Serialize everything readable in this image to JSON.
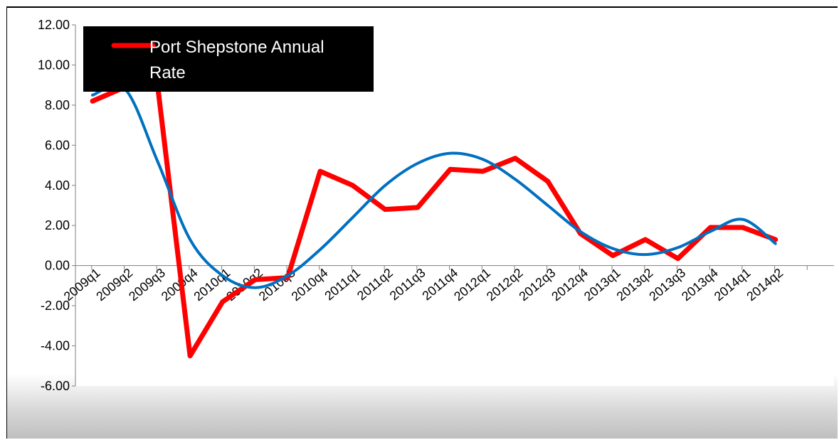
{
  "chart_data": {
    "type": "line",
    "title": "",
    "xlabel": "",
    "ylabel": "",
    "categories": [
      "2009q1",
      "2009q2",
      "2009q3",
      "2009q4",
      "2010q1",
      "2010q2",
      "2010q3",
      "2010q4",
      "2011q1",
      "2011q2",
      "2011q3",
      "2011q4",
      "2012q1",
      "2012q2",
      "2012q3",
      "2012q4",
      "2013q1",
      "2013q2",
      "2013q3",
      "2013q4",
      "2014q1",
      "2014q2"
    ],
    "ylim": [
      -6,
      12
    ],
    "yticks": [
      -6,
      -4,
      -2,
      0,
      2,
      4,
      6,
      8,
      10,
      12
    ],
    "ytick_labels": [
      "-6.00",
      "-4.00",
      "-2.00",
      "0.00",
      "2.00",
      "4.00",
      "6.00",
      "8.00",
      "10.00",
      "12.00"
    ],
    "grid": false,
    "legend": {
      "position": "top-left",
      "entries": [
        "Port Shepstone Annual Rate"
      ]
    },
    "series": [
      {
        "name": "Port Shepstone Annual Rate",
        "color": "#ff0000",
        "values": [
          8.2,
          8.9,
          9.0,
          -4.5,
          -1.8,
          -0.7,
          -0.6,
          4.7,
          4.0,
          2.8,
          2.9,
          4.8,
          4.7,
          5.35,
          4.2,
          1.6,
          0.5,
          1.3,
          0.35,
          1.9,
          1.9,
          1.3
        ]
      },
      {
        "color": "#0070c0",
        "trendline": true,
        "values": [
          8.5,
          8.8,
          5.2,
          1.3,
          -0.5,
          -1.1,
          -0.5,
          0.8,
          2.4,
          4.0,
          5.1,
          5.6,
          5.3,
          4.3,
          3.0,
          1.7,
          0.85,
          0.55,
          0.9,
          1.7,
          2.3,
          1.1
        ]
      }
    ]
  }
}
